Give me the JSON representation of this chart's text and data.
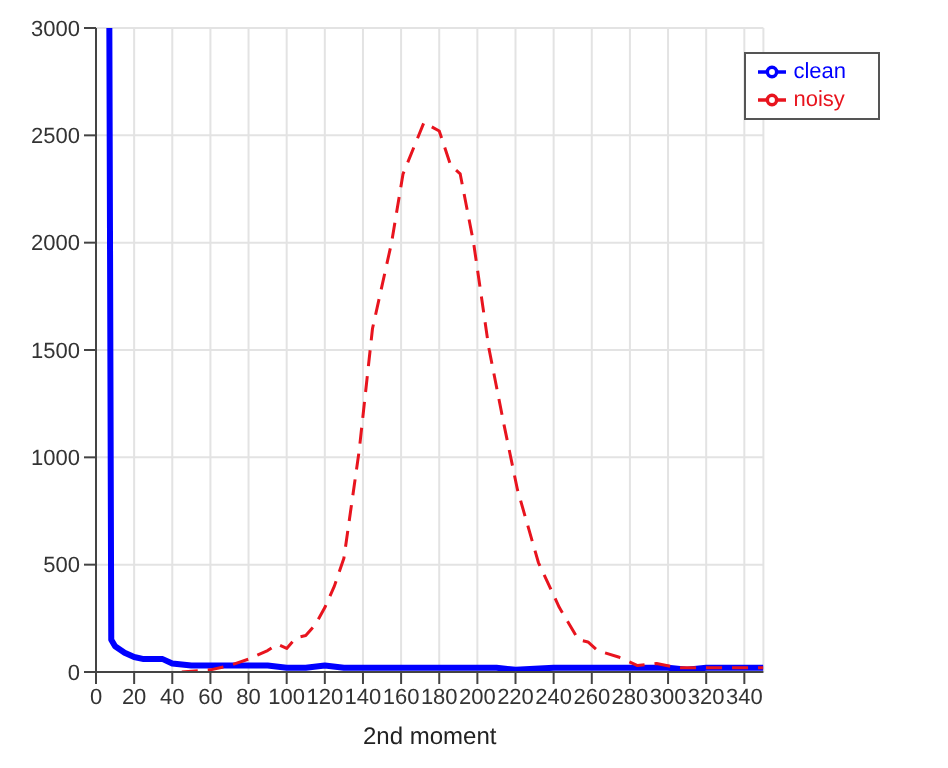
{
  "chart_data": {
    "type": "line",
    "xlabel": "2nd moment",
    "xlim": [
      0,
      350
    ],
    "ylim": [
      0,
      3000
    ],
    "xticks": [
      0,
      20,
      40,
      60,
      80,
      100,
      120,
      140,
      160,
      180,
      200,
      220,
      240,
      260,
      280,
      300,
      320,
      340
    ],
    "yticks": [
      0,
      500,
      1000,
      1500,
      2000,
      2500,
      3000
    ],
    "grid": true,
    "legend": "top right",
    "marker": "none",
    "series": [
      {
        "name": "clean",
        "color": "#0000ff",
        "line_style": "solid",
        "x": [
          7,
          8,
          10,
          15,
          20,
          25,
          30,
          35,
          40,
          50,
          60,
          70,
          80,
          90,
          100,
          110,
          120,
          130,
          140,
          150,
          160,
          170,
          180,
          200,
          210,
          220,
          240,
          260,
          280,
          300,
          310,
          320,
          340,
          350
        ],
        "values": [
          3000,
          150,
          120,
          90,
          70,
          60,
          60,
          60,
          40,
          30,
          30,
          30,
          30,
          30,
          20,
          20,
          30,
          20,
          20,
          20,
          20,
          20,
          20,
          20,
          20,
          10,
          20,
          20,
          20,
          20,
          10,
          20,
          20,
          20
        ]
      },
      {
        "name": "noisy",
        "color": "#e8141e",
        "line_style": "dashed",
        "x": [
          45,
          60,
          70,
          80,
          90,
          95,
          100,
          105,
          110,
          115,
          120,
          125,
          130,
          138,
          145,
          155,
          161,
          172,
          180,
          186,
          191,
          198,
          206,
          214,
          221,
          232,
          243,
          253,
          258,
          263,
          274,
          284,
          294,
          305,
          320,
          335,
          350
        ],
        "values": [
          0,
          10,
          30,
          60,
          100,
          130,
          110,
          160,
          170,
          220,
          300,
          400,
          530,
          1030,
          1600,
          2000,
          2320,
          2560,
          2520,
          2360,
          2320,
          2000,
          1510,
          1150,
          850,
          510,
          300,
          150,
          140,
          100,
          70,
          30,
          40,
          20,
          20,
          20,
          20
        ]
      }
    ]
  }
}
